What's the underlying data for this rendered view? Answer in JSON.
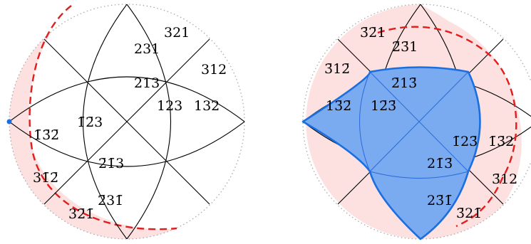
{
  "left_panel": {
    "labels": [
      {
        "id": "l-321",
        "text": "321"
      },
      {
        "id": "l-231",
        "text": "231"
      },
      {
        "id": "l-312",
        "text": "312"
      },
      {
        "id": "l-213",
        "text": "213"
      },
      {
        "id": "l-123",
        "text": "123"
      },
      {
        "id": "l-132",
        "text": "132"
      },
      {
        "id": "l-n1n3n2",
        "text": "1̄3̄2̄"
      },
      {
        "id": "l-n1n2n3",
        "text": "1̄2̄3"
      },
      {
        "id": "l-n2n1n3",
        "text": "2̄1̄3"
      },
      {
        "id": "l-3n1n2",
        "text": "31̄2̄"
      },
      {
        "id": "l-n23n1",
        "text": "2̄31̄"
      },
      {
        "id": "l-3n2n1",
        "text": "32̄1̄"
      }
    ]
  },
  "right_panel": {
    "labels": [
      {
        "id": "r-n3n21",
        "text": "3̄2̄1"
      },
      {
        "id": "r-2n31",
        "text": "2̄3̄1"
      },
      {
        "id": "r-n31n2",
        "text": "3̄12̄"
      },
      {
        "id": "r-n21n3",
        "text": "2̄13̄"
      },
      {
        "id": "r-1n3n2",
        "text": "13̄2̄"
      },
      {
        "id": "r-1n2n3",
        "text": "12̄3̄"
      },
      {
        "id": "r-n12n3",
        "text": "1̄23̄"
      },
      {
        "id": "r-n13n2",
        "text": "1̄3̄2"
      },
      {
        "id": "r-2n1n3",
        "text": "21̄3̄"
      },
      {
        "id": "r-n312",
        "text": "3̄12"
      },
      {
        "id": "r-2n3n1",
        "text": "23̄1̄"
      },
      {
        "id": "r-n32n1",
        "text": "3̄21̄"
      }
    ]
  },
  "colors": {
    "line": "#000000",
    "dotted_circle": "#aaaaaa",
    "pink_fill": "#fde0e0",
    "red_dashed": "#e11d1d",
    "blue_fill": "#7aaaf0",
    "blue_stroke": "#1a6fe0",
    "blue_dot": "#1a6fe0"
  }
}
